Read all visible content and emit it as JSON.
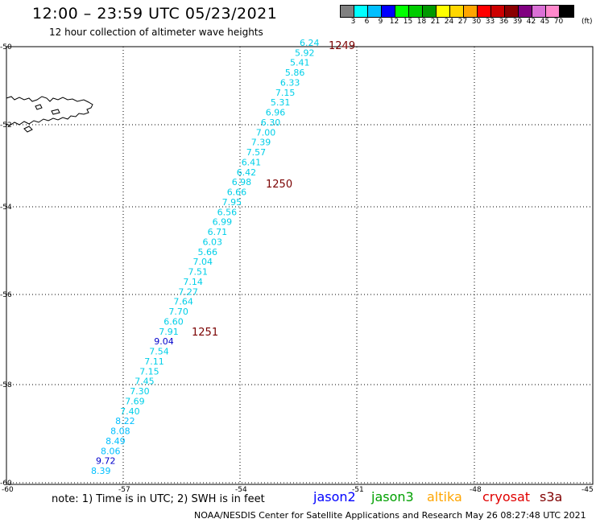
{
  "header": {
    "title": "12:00 – 23:59 UTC 05/23/2021",
    "subtitle": "12 hour collection of altimeter wave heights"
  },
  "legend": {
    "colors": [
      "#808080",
      "#00ffff",
      "#00bfff",
      "#0000ff",
      "#00ff00",
      "#00cc00",
      "#009900",
      "#ffff00",
      "#ffd700",
      "#ffa500",
      "#ff0000",
      "#cc0000",
      "#8b0000",
      "#800080",
      "#da70d6",
      "#ff88cc",
      "#000000"
    ],
    "labels": [
      "3",
      "6",
      "9",
      "12",
      "15",
      "18",
      "21",
      "24",
      "27",
      "30",
      "33",
      "36",
      "39",
      "42",
      "45",
      "70"
    ],
    "unit": "(ft)"
  },
  "map": {
    "lat_labels": [
      "-50",
      "-52",
      "-54",
      "-56",
      "-58",
      "-60"
    ],
    "lon_labels": [
      "-60",
      "-57",
      "-54",
      "-51",
      "-48",
      "-45"
    ],
    "track": [
      {
        "value": "6.24",
        "color": "#00cfe8"
      },
      {
        "value": "5.92",
        "color": "#00cfe8"
      },
      {
        "value": "5.41",
        "color": "#00cfe8"
      },
      {
        "value": "5.86",
        "color": "#00cfe8"
      },
      {
        "value": "6.33",
        "color": "#00cfe8"
      },
      {
        "value": "7.15",
        "color": "#00cfe8"
      },
      {
        "value": "5.31",
        "color": "#00cfe8"
      },
      {
        "value": "6.96",
        "color": "#00cfe8"
      },
      {
        "value": "6.30",
        "color": "#00cfe8"
      },
      {
        "value": "7.00",
        "color": "#00cfe8"
      },
      {
        "value": "7.39",
        "color": "#00cfe8"
      },
      {
        "value": "7.57",
        "color": "#00cfe8"
      },
      {
        "value": "6.41",
        "color": "#00cfe8"
      },
      {
        "value": "6.42",
        "color": "#00cfe8"
      },
      {
        "value": "6.98",
        "color": "#00cfe8"
      },
      {
        "value": "6.66",
        "color": "#00cfe8"
      },
      {
        "value": "7.95",
        "color": "#00cfe8"
      },
      {
        "value": "6.56",
        "color": "#00cfe8"
      },
      {
        "value": "6.99",
        "color": "#00cfe8"
      },
      {
        "value": "6.71",
        "color": "#00cfe8"
      },
      {
        "value": "6.03",
        "color": "#00cfe8"
      },
      {
        "value": "5.66",
        "color": "#00cfe8"
      },
      {
        "value": "7.04",
        "color": "#00cfe8"
      },
      {
        "value": "7.51",
        "color": "#00cfe8"
      },
      {
        "value": "7.14",
        "color": "#00cfe8"
      },
      {
        "value": "7.27",
        "color": "#00cfe8"
      },
      {
        "value": "7.64",
        "color": "#00cfe8"
      },
      {
        "value": "7.70",
        "color": "#00cfe8"
      },
      {
        "value": "6.60",
        "color": "#00cfe8"
      },
      {
        "value": "7.91",
        "color": "#00cfe8"
      },
      {
        "value": "9.04",
        "color": "#0000cc"
      },
      {
        "value": "7.54",
        "color": "#00cfe8"
      },
      {
        "value": "7.11",
        "color": "#00cfe8"
      },
      {
        "value": "7.15",
        "color": "#00cfe8"
      },
      {
        "value": "7.45",
        "color": "#00cfe8"
      },
      {
        "value": "7.30",
        "color": "#00cfe8"
      },
      {
        "value": "7.69",
        "color": "#00cfe8"
      },
      {
        "value": "7.40",
        "color": "#00cfe8"
      },
      {
        "value": "8.22",
        "color": "#00bfff"
      },
      {
        "value": "8.08",
        "color": "#00bfff"
      },
      {
        "value": "8.49",
        "color": "#00bfff"
      },
      {
        "value": "8.06",
        "color": "#00bfff"
      },
      {
        "value": "9.72",
        "color": "#0000cc"
      },
      {
        "value": "8.39",
        "color": "#00bfff"
      }
    ],
    "pass_labels": [
      "1249",
      "1250",
      "1251"
    ]
  },
  "footer": {
    "note": "note: 1) Time is in UTC; 2) SWH is in feet",
    "satellites": [
      {
        "name": "jason2",
        "color": "#0000ff"
      },
      {
        "name": "jason3",
        "color": "#00a000"
      },
      {
        "name": "altika",
        "color": "#ffa500"
      },
      {
        "name": "cryosat",
        "color": "#e00000"
      },
      {
        "name": "s3a",
        "color": "#800000"
      }
    ],
    "credit": "NOAA/NESDIS Center for Satellite Applications and Research    May 26 08:27:48 UTC 2021"
  }
}
